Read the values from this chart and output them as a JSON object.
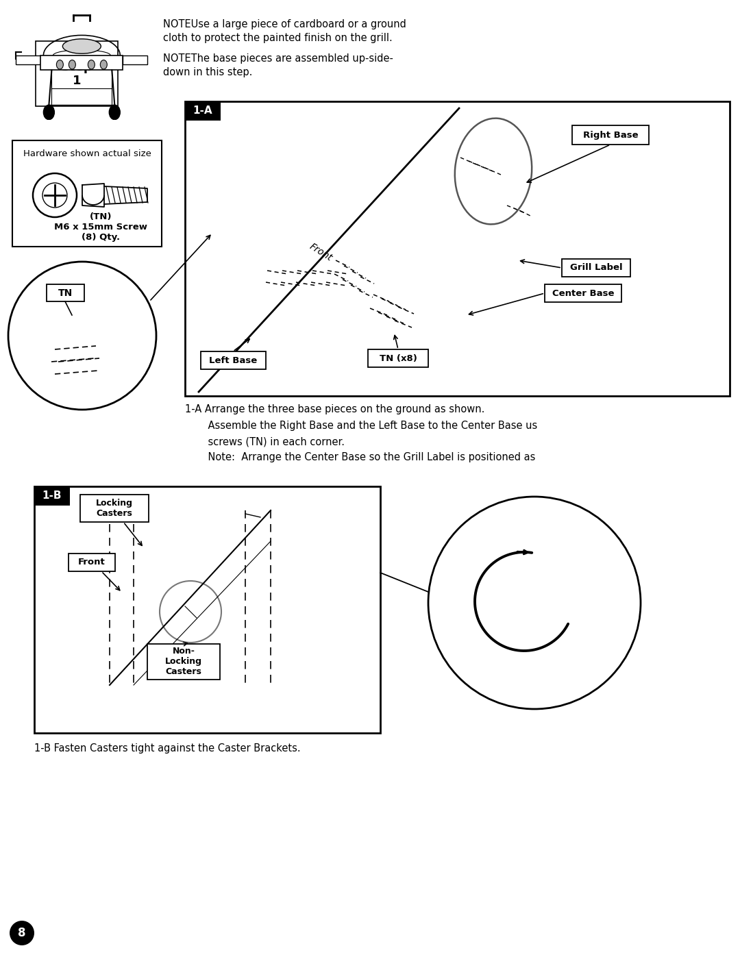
{
  "bg_color": "#ffffff",
  "page_width": 10.8,
  "page_height": 13.97,
  "note_text1": "NOTEUse a large piece of cardboard or a ground\ncloth to protect the painted finish on the grill.",
  "note_text2": "NOTEThe base pieces are assembled up-side-\ndown in this step.",
  "hardware_title": "Hardware shown actual size",
  "hardware_label": "(TN)\nM6 x 15mm Screw\n(8) Qty.",
  "label_1A": "1-A",
  "label_1B": "1-B",
  "right_base_label": "Right Base",
  "grill_label_label": "Grill Label",
  "center_base_label": "Center Base",
  "left_base_label": "Left Base",
  "tn_x8_label": "TN (x8)",
  "tn_label": "TN",
  "front_label": "Front",
  "locking_casters_label": "Locking\nCasters",
  "front_label_b": "Front",
  "non_locking_label": "Non-\nLocking\nCasters",
  "caption_1a_line1": "1-A Arrange the three base pieces on the ground as shown.",
  "caption_1a_line2": "    Assemble the Right Base and the Left Base to the Center Base us",
  "caption_1a_line3": "    screws (TN) in each corner.",
  "caption_1a_line4": "    Note:  Arrange the Center Base so the Grill Label is positioned as",
  "caption_1b": "1-B Fasten Casters tight against the Caster Brackets."
}
